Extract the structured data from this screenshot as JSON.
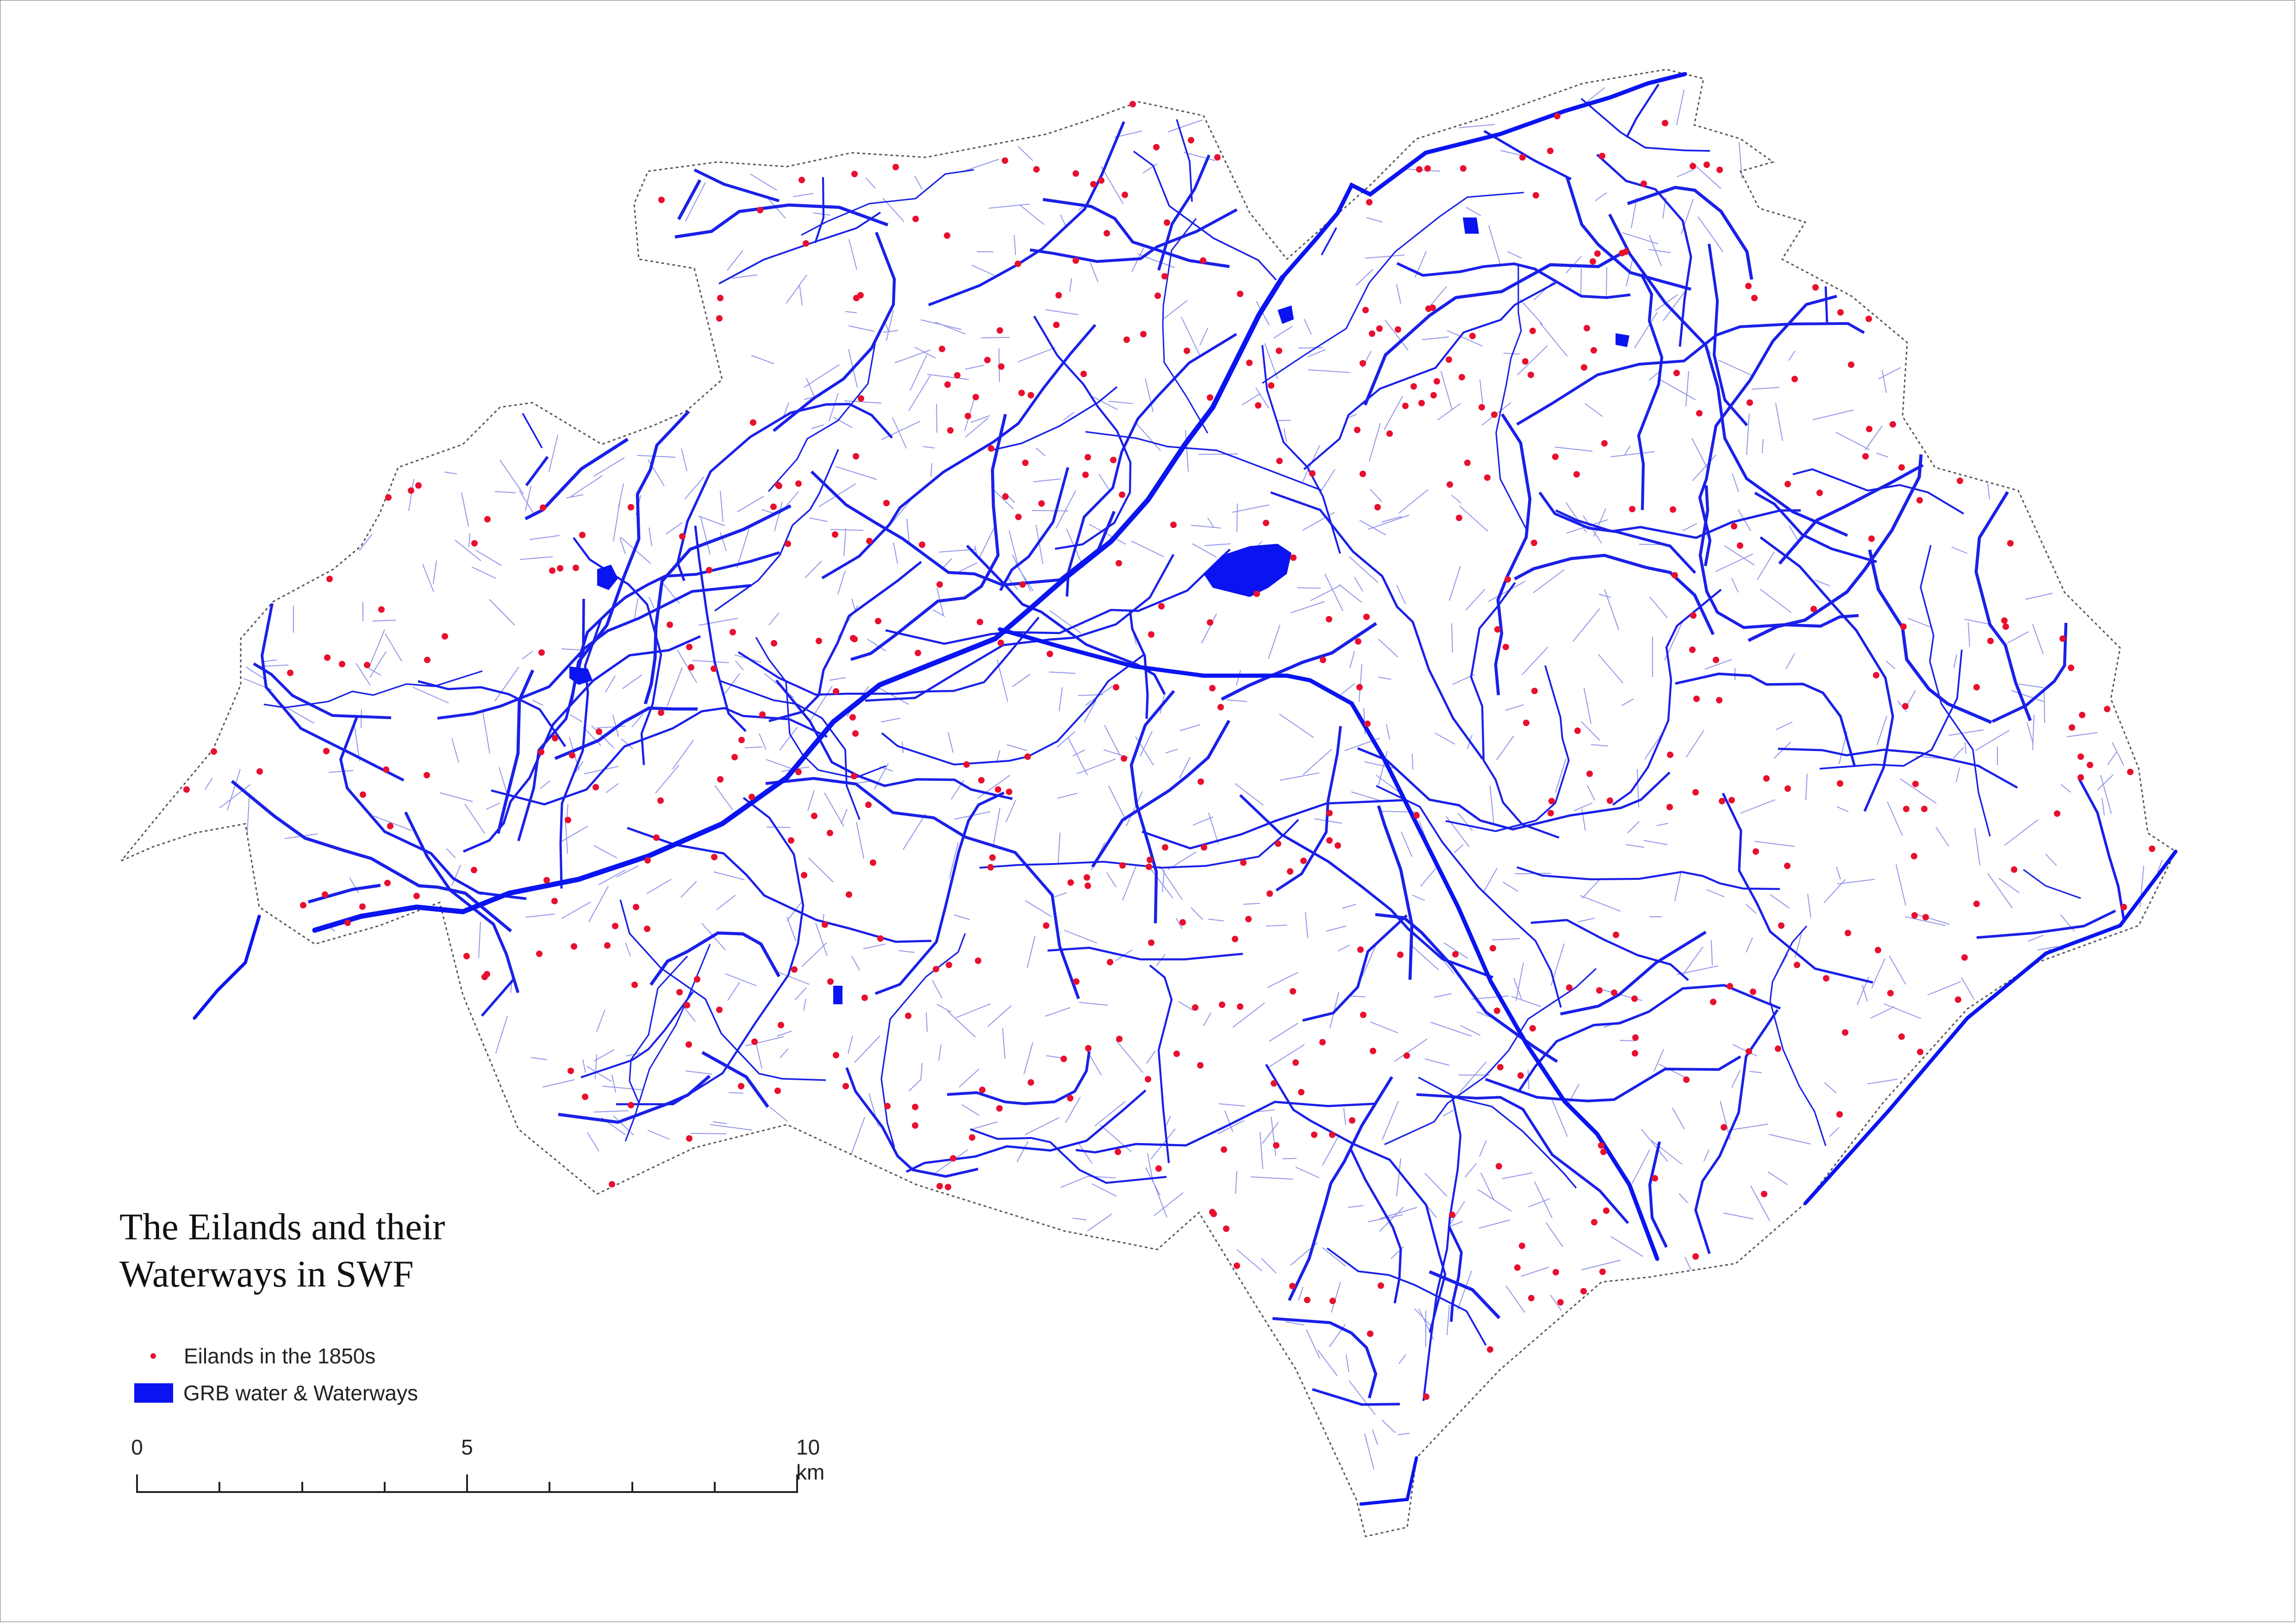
{
  "title": {
    "line1": "The Eilands and their",
    "line2": "Waterways in SWF"
  },
  "legend": {
    "eilands_label": "Eilands in the 1850s",
    "water_label": "GRB water & Waterways"
  },
  "scalebar": {
    "label_0": "0",
    "label_5": "5",
    "label_10": "10 km"
  },
  "colors": {
    "eiland_dot": "#e8102e",
    "water": "#0a14f0",
    "minor_waterway": "#3a40d8",
    "boundary": "#555555"
  }
}
